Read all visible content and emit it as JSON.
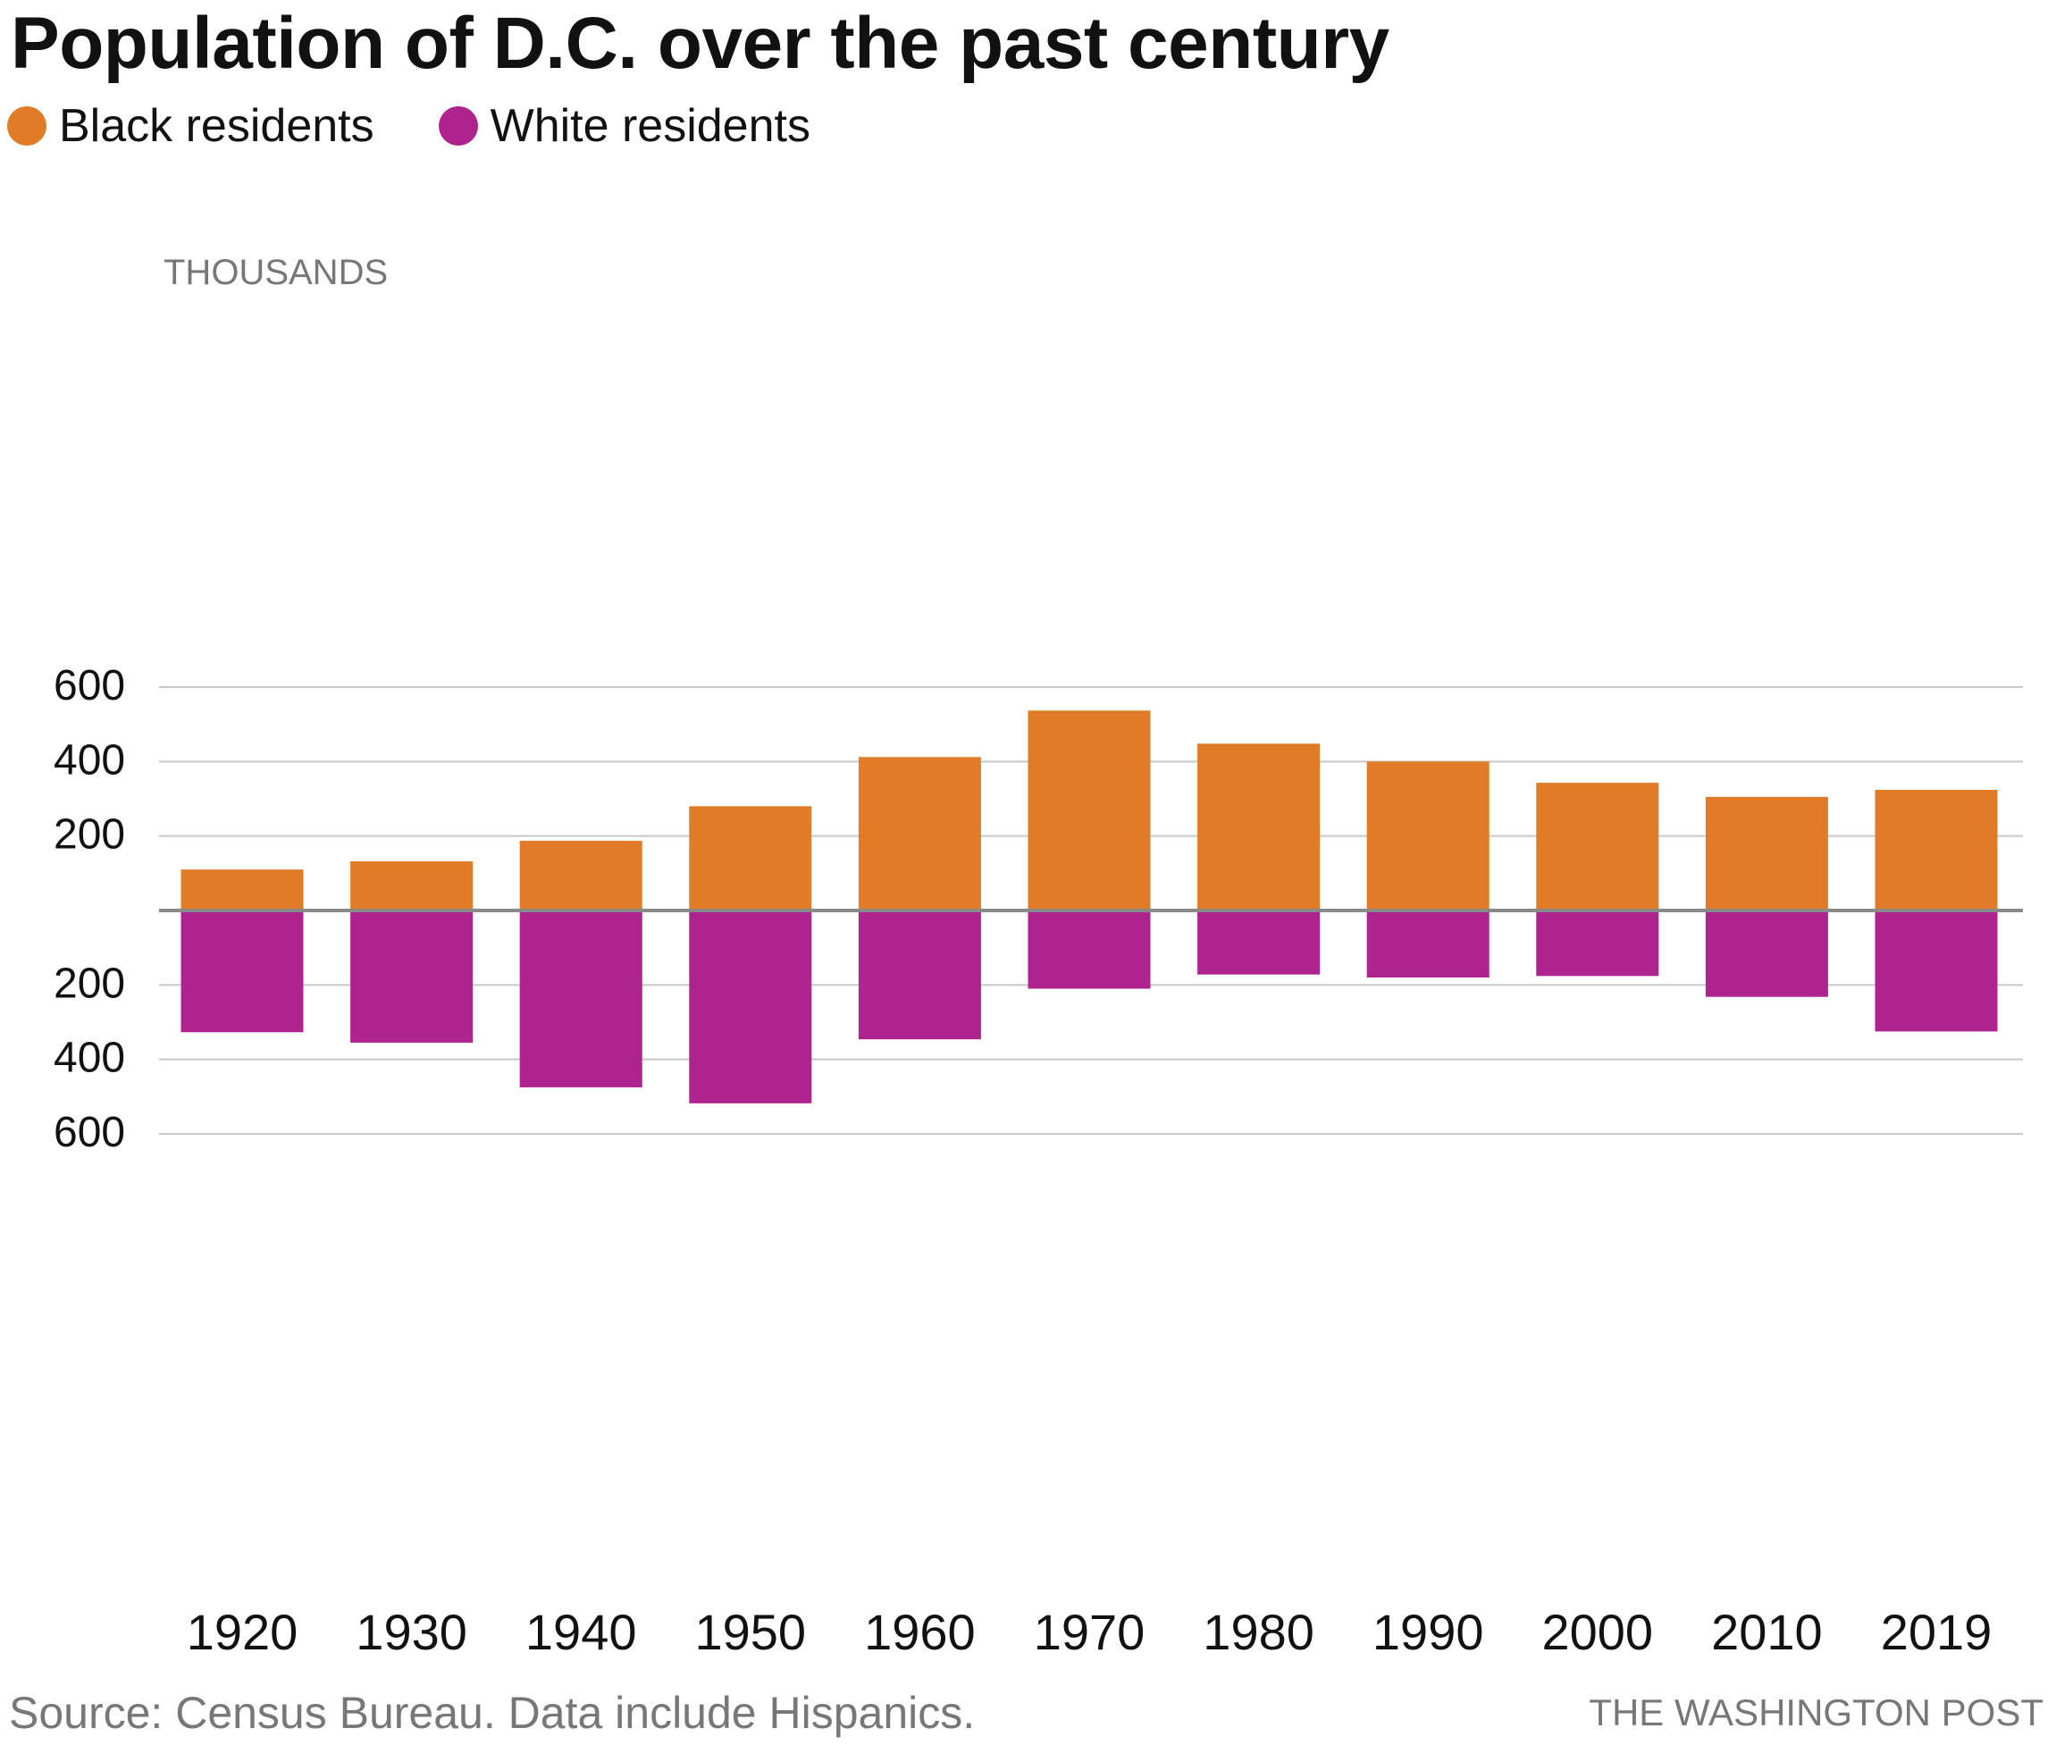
{
  "title": "Population of D.C. over the past century",
  "legend": [
    {
      "label": "Black residents",
      "color": "#e07b28"
    },
    {
      "label": "White residents",
      "color": "#ae238e"
    }
  ],
  "chart_data": {
    "type": "bar",
    "unit_label": "THOUSANDS",
    "categories": [
      "1920",
      "1930",
      "1940",
      "1950",
      "1960",
      "1970",
      "1980",
      "1990",
      "2000",
      "2010",
      "2019"
    ],
    "series": [
      {
        "name": "Black residents",
        "direction": "up",
        "color": "#e07b28",
        "values": [
          110,
          132,
          187,
          280,
          412,
          537,
          448,
          400,
          343,
          305,
          324
        ]
      },
      {
        "name": "White residents",
        "direction": "down",
        "color": "#ae238e",
        "values": [
          327,
          355,
          475,
          518,
          346,
          210,
          172,
          180,
          176,
          232,
          325
        ]
      }
    ],
    "y_ticks_up": [
      "600",
      "400",
      "200"
    ],
    "y_ticks_down": [
      "200",
      "400",
      "600"
    ],
    "ylim": [
      -600,
      600
    ],
    "grid": true
  },
  "footer": {
    "source": "Source: Census Bureau. Data include Hispanics.",
    "credit": "THE WASHINGTON POST"
  }
}
